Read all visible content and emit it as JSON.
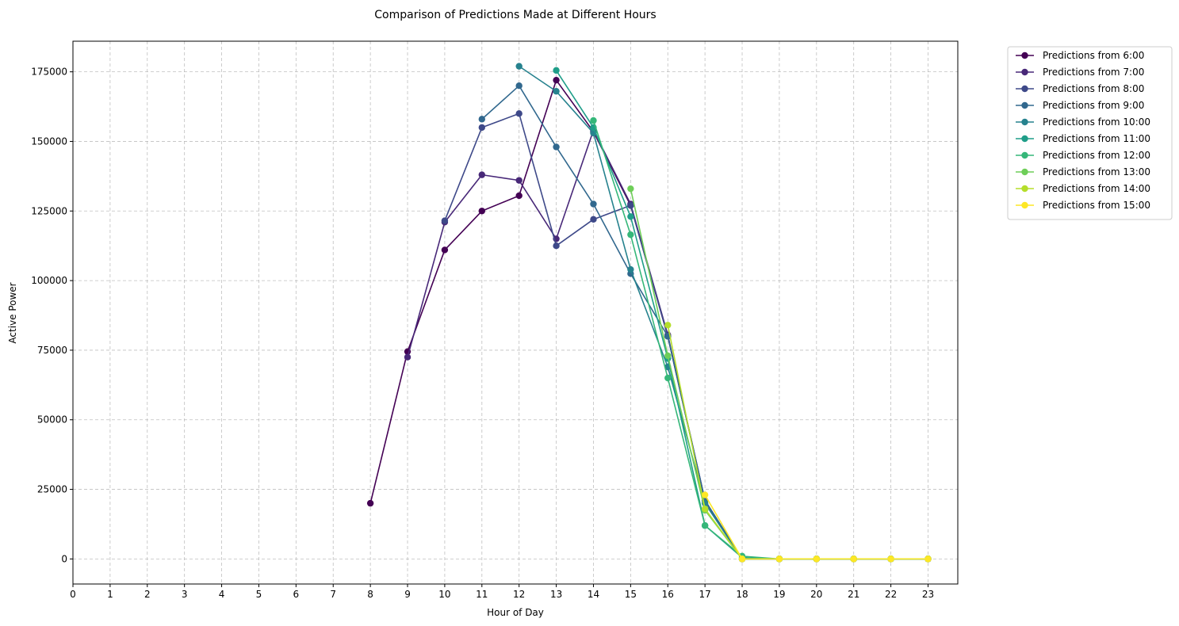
{
  "chart_data": {
    "type": "line",
    "title": "Comparison of Predictions Made at Different Hours",
    "xlabel": "Hour of Day",
    "ylabel": "Active Power",
    "xlim": [
      0,
      23.8
    ],
    "ylim": [
      -9000,
      186000
    ],
    "x_ticks": [
      0,
      1,
      2,
      3,
      4,
      5,
      6,
      7,
      8,
      9,
      10,
      11,
      12,
      13,
      14,
      15,
      16,
      17,
      18,
      19,
      20,
      21,
      22,
      23
    ],
    "y_ticks": [
      0,
      25000,
      50000,
      75000,
      100000,
      125000,
      150000,
      175000
    ],
    "grid": true,
    "legend_position": "outside-top-right",
    "series": [
      {
        "name": "Predictions from 6:00",
        "color": "#440154",
        "x": [
          8,
          9,
          10,
          11,
          12,
          13,
          14,
          15,
          16,
          17,
          18,
          19,
          20,
          21,
          22,
          23
        ],
        "y": [
          20000,
          74500,
          111000,
          125000,
          130500,
          172000,
          153500,
          127000,
          80000,
          21000,
          0,
          0,
          0,
          0,
          0,
          0
        ]
      },
      {
        "name": "Predictions from 7:00",
        "color": "#482878",
        "x": [
          9,
          10,
          11,
          12,
          13,
          14,
          15,
          16,
          17,
          18,
          19,
          20,
          21,
          22,
          23
        ],
        "y": [
          72500,
          121000,
          138000,
          136000,
          115000,
          154000,
          127500,
          80500,
          21000,
          0,
          0,
          0,
          0,
          0,
          0
        ]
      },
      {
        "name": "Predictions from 8:00",
        "color": "#3e4989",
        "x": [
          10,
          11,
          12,
          13,
          14,
          15,
          16,
          17,
          18,
          19,
          20,
          21,
          22,
          23
        ],
        "y": [
          121500,
          155000,
          160000,
          112500,
          122000,
          127000,
          80000,
          21000,
          0,
          0,
          0,
          0,
          0,
          0
        ]
      },
      {
        "name": "Predictions from 9:00",
        "color": "#31688e",
        "x": [
          11,
          12,
          13,
          14,
          15,
          16,
          17,
          18,
          19,
          20,
          21,
          22,
          23
        ],
        "y": [
          158000,
          170000,
          148000,
          127500,
          102500,
          80000,
          21000,
          0,
          0,
          0,
          0,
          0,
          0
        ]
      },
      {
        "name": "Predictions from 10:00",
        "color": "#26828e",
        "x": [
          12,
          13,
          14,
          15,
          16,
          17,
          18,
          19,
          20,
          21,
          22,
          23
        ],
        "y": [
          177000,
          168000,
          153000,
          104000,
          69000,
          20000,
          0,
          0,
          0,
          0,
          0,
          0
        ]
      },
      {
        "name": "Predictions from 11:00",
        "color": "#1f9e89",
        "x": [
          13,
          14,
          15,
          16,
          17,
          18,
          19,
          20,
          21,
          22,
          23
        ],
        "y": [
          175500,
          155000,
          123000,
          72000,
          12000,
          500,
          0,
          0,
          0,
          0,
          0
        ]
      },
      {
        "name": "Predictions from 12:00",
        "color": "#35b779",
        "x": [
          14,
          15,
          16,
          17,
          18,
          19,
          20,
          21,
          22,
          23
        ],
        "y": [
          157500,
          116500,
          65000,
          12000,
          1000,
          0,
          0,
          0,
          0,
          0
        ]
      },
      {
        "name": "Predictions from 13:00",
        "color": "#6ece58",
        "x": [
          15,
          16,
          17,
          18,
          19,
          20,
          21,
          22,
          23
        ],
        "y": [
          133000,
          73000,
          17500,
          0,
          0,
          0,
          0,
          0,
          0
        ]
      },
      {
        "name": "Predictions from 14:00",
        "color": "#b5de2b",
        "x": [
          16,
          17,
          18,
          19,
          20,
          21,
          22,
          23
        ],
        "y": [
          84000,
          18000,
          0,
          0,
          0,
          0,
          0,
          0
        ]
      },
      {
        "name": "Predictions from 15:00",
        "color": "#fde725",
        "x": [
          17,
          18,
          19,
          20,
          21,
          22,
          23
        ],
        "y": [
          23000,
          0,
          0,
          0,
          0,
          0,
          0
        ]
      }
    ]
  }
}
